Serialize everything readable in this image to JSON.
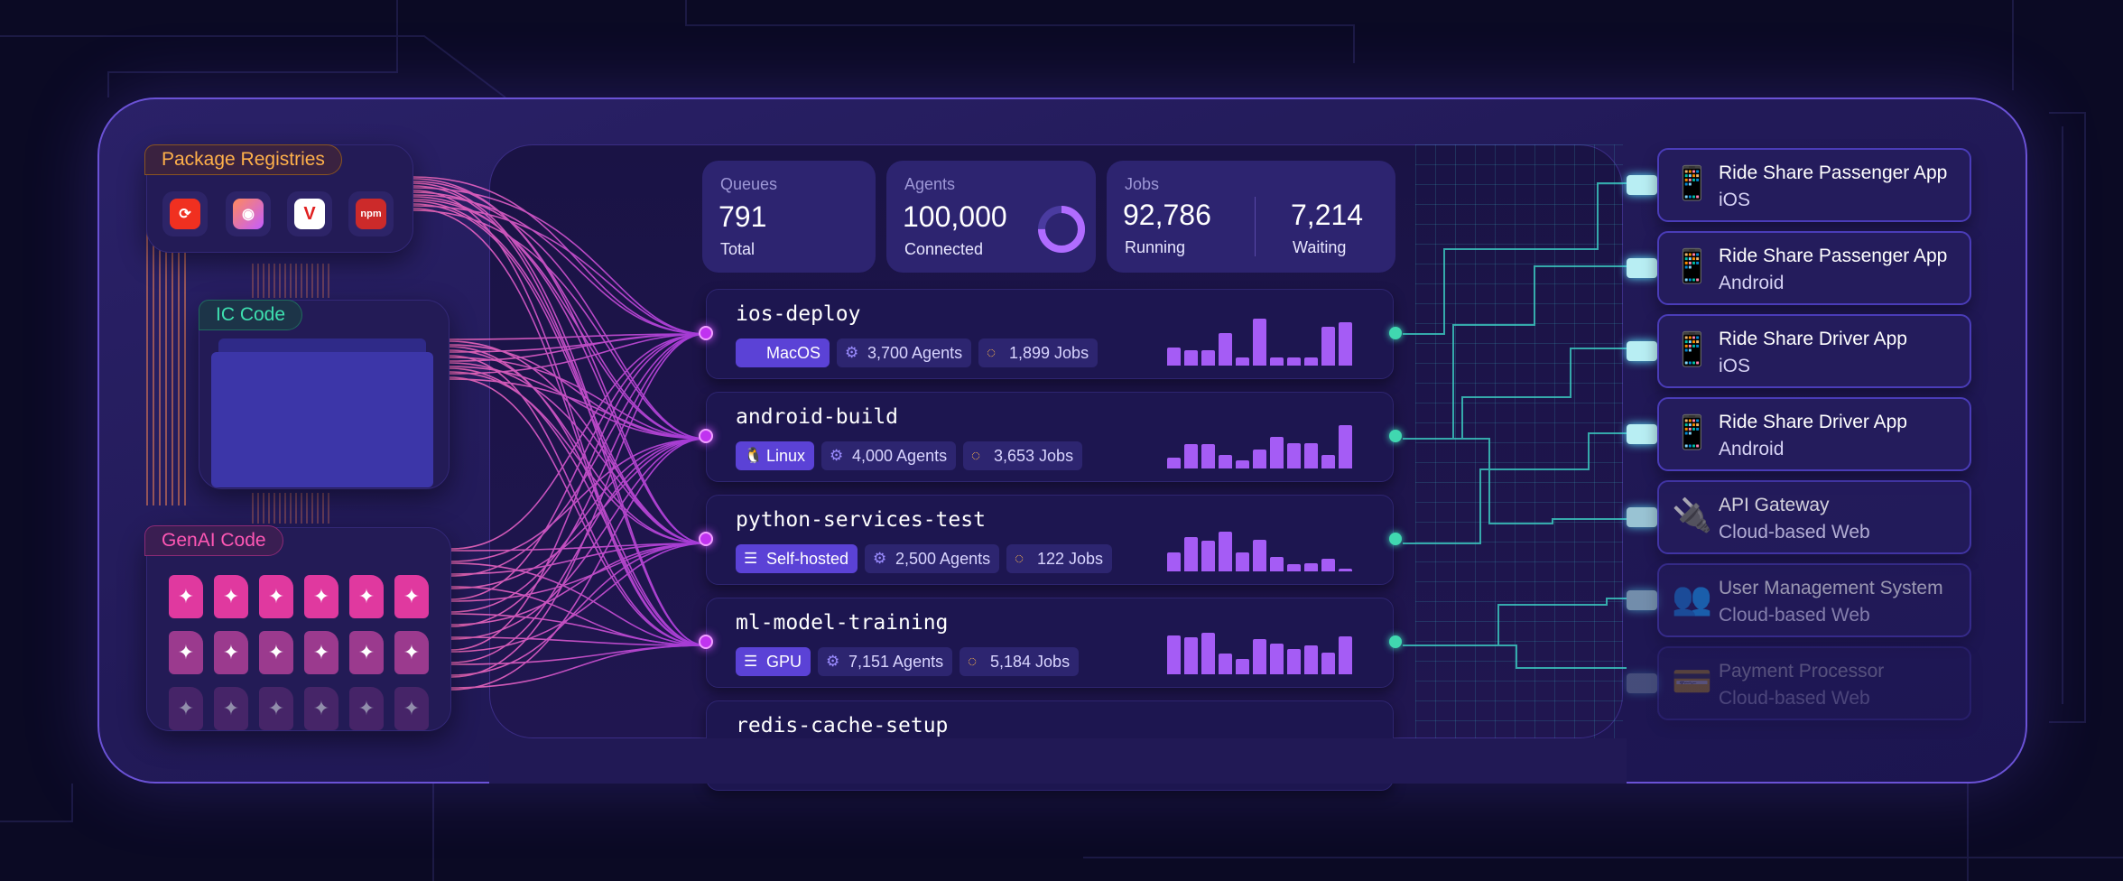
{
  "sources": {
    "package_registries": {
      "label": "Package Registries",
      "icons": [
        "circleci-icon",
        "gradient-registry-icon",
        "v-registry-icon",
        "npm-icon"
      ],
      "npm_text": "npm"
    },
    "ic_code": {
      "label": "IC Code"
    },
    "genai_code": {
      "label": "GenAI Code"
    }
  },
  "stats": {
    "queues": {
      "label": "Queues",
      "value": "791",
      "sub": "Total"
    },
    "agents": {
      "label": "Agents",
      "value": "100,000",
      "sub": "Connected",
      "ring_fill": 0.75
    },
    "jobs": {
      "label": "Jobs",
      "running_value": "92,786",
      "running_label": "Running",
      "waiting_value": "7,214",
      "waiting_label": "Waiting"
    }
  },
  "pipelines": [
    {
      "name": "ios-deploy",
      "os": "MacOS",
      "os_icon": "apple-icon",
      "agents": "3,700 Agents",
      "jobs": "1,899 Jobs",
      "bars": [
        0.34,
        0.3,
        0.3,
        0.62,
        0.16,
        0.9,
        0.16,
        0.16,
        0.16,
        0.74,
        0.82
      ]
    },
    {
      "name": "android-build",
      "os": "Linux",
      "os_icon": "linux-icon",
      "agents": "4,000 Agents",
      "jobs": "3,653 Jobs",
      "bars": [
        0.2,
        0.46,
        0.46,
        0.26,
        0.16,
        0.36,
        0.6,
        0.48,
        0.48,
        0.26,
        0.82
      ]
    },
    {
      "name": "python-services-test",
      "os": "Self-hosted",
      "os_icon": "server-icon",
      "agents": "2,500 Agents",
      "jobs": "122 Jobs",
      "bars": [
        0.36,
        0.66,
        0.58,
        0.76,
        0.36,
        0.6,
        0.28,
        0.14,
        0.16,
        0.24,
        0.06
      ]
    },
    {
      "name": "ml-model-training",
      "os": "GPU",
      "os_icon": "server-icon",
      "agents": "7,151 Agents",
      "jobs": "5,184 Jobs",
      "bars": [
        0.74,
        0.7,
        0.8,
        0.4,
        0.3,
        0.68,
        0.58,
        0.48,
        0.56,
        0.42,
        0.72
      ]
    },
    {
      "name": "redis-cache-setup"
    }
  ],
  "apps": [
    {
      "title": "Ride Share Passenger App",
      "platform": "iOS",
      "icon": "phone-icon",
      "glyph": "📱"
    },
    {
      "title": "Ride Share Passenger App",
      "platform": "Android",
      "icon": "phone-icon",
      "glyph": "📱"
    },
    {
      "title": "Ride Share Driver App",
      "platform": "iOS",
      "icon": "phone-icon",
      "glyph": "📱"
    },
    {
      "title": "Ride Share Driver App",
      "platform": "Android",
      "icon": "phone-icon",
      "glyph": "📱"
    },
    {
      "title": "API Gateway",
      "platform": "Cloud-based Web",
      "icon": "plug-icon",
      "glyph": "🔌"
    },
    {
      "title": "User Management System",
      "platform": "Cloud-based Web",
      "icon": "users-icon",
      "glyph": "👥"
    },
    {
      "title": "Payment Processor",
      "platform": "Cloud-based Web",
      "icon": "card-icon",
      "glyph": "💳"
    }
  ],
  "colors": {
    "accent": "#a55cf5",
    "teal": "#40d8b0",
    "orange": "#ffb04a",
    "pink": "#ff57b4"
  }
}
